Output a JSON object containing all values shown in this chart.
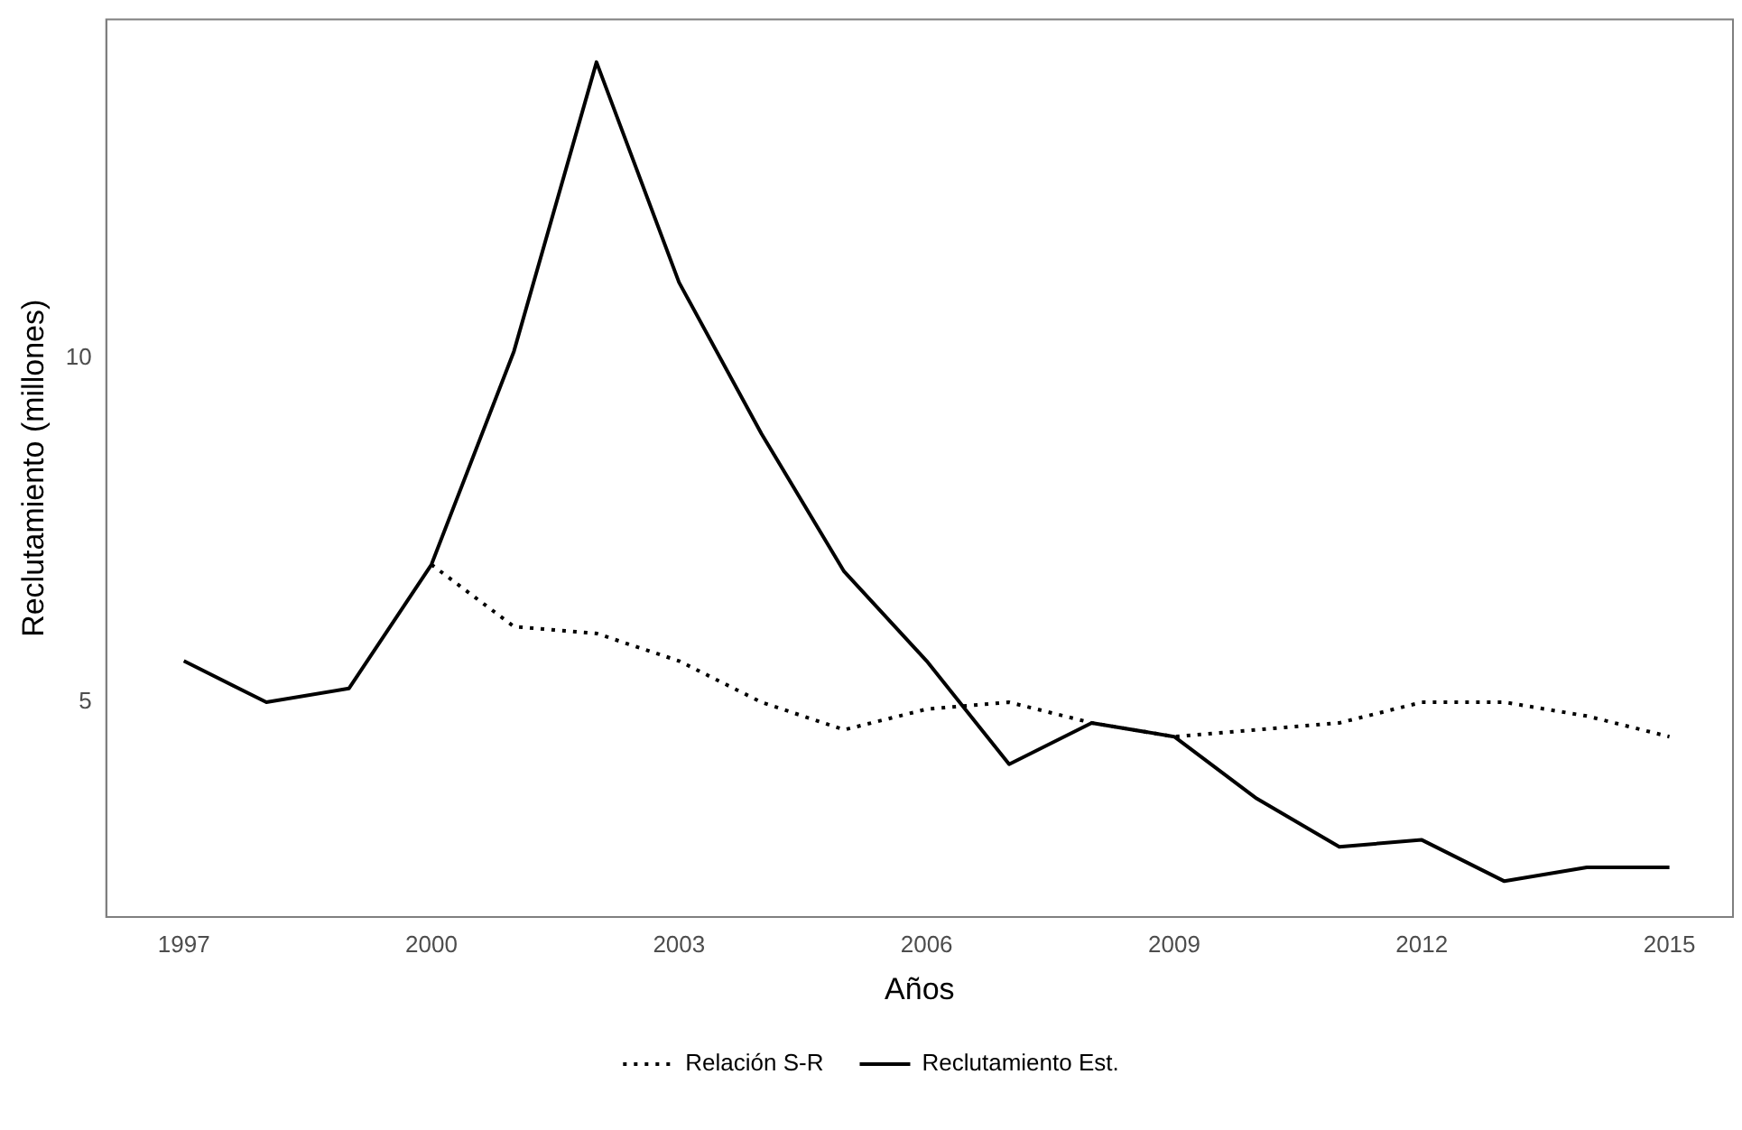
{
  "chart_data": {
    "type": "line",
    "xlabel": "Años",
    "ylabel": "Reclutamiento (millones)",
    "x": [
      1997,
      1998,
      1999,
      2000,
      2001,
      2002,
      2003,
      2004,
      2005,
      2006,
      2007,
      2008,
      2009,
      2010,
      2011,
      2012,
      2013,
      2014,
      2015
    ],
    "series": [
      {
        "name": "Relación S-R",
        "color": "#000000",
        "line_style": "dotted",
        "x": [
          2000,
          2001,
          2002,
          2003,
          2004,
          2005,
          2006,
          2007,
          2008,
          2009,
          2010,
          2011,
          2012,
          2013,
          2014,
          2015
        ],
        "values": [
          7.0,
          6.1,
          6.0,
          5.6,
          5.0,
          4.6,
          4.9,
          5.0,
          4.7,
          4.5,
          4.6,
          4.7,
          5.0,
          5.0,
          4.8,
          4.5
        ]
      },
      {
        "name": "Reclutamiento Est.",
        "color": "#000000",
        "line_style": "solid",
        "values": [
          5.6,
          5.0,
          5.2,
          7.0,
          10.1,
          14.3,
          11.1,
          8.9,
          6.9,
          5.6,
          4.1,
          4.7,
          4.5,
          3.6,
          2.9,
          3.0,
          2.4,
          2.6,
          2.6
        ]
      }
    ],
    "xlim": [
      1996.06,
      2015.77
    ],
    "xticks": [
      1997,
      2000,
      2003,
      2006,
      2009,
      2012,
      2015
    ],
    "ylim": [
      1.88,
      14.92
    ],
    "yticks": [
      5,
      10
    ],
    "grid": false,
    "legend": "bottom",
    "marker": "none"
  }
}
